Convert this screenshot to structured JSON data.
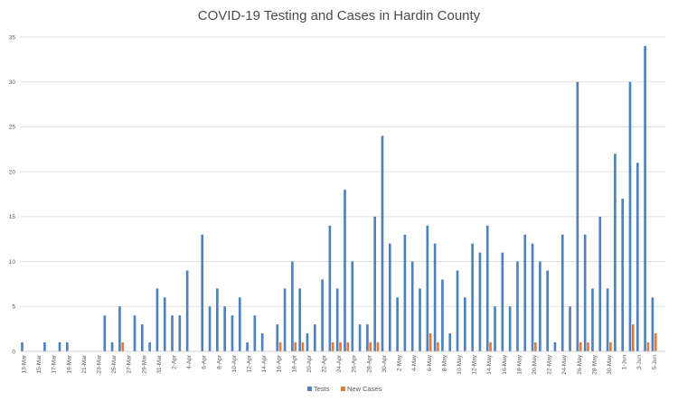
{
  "chart_data": {
    "type": "bar",
    "title": "COVID-19 Testing and Cases in Hardin County",
    "xlabel": "",
    "ylabel": "",
    "ylim": [
      0,
      35
    ],
    "yticks": [
      0,
      5,
      10,
      15,
      20,
      25,
      30,
      35
    ],
    "grid": true,
    "legend_position": "bottom",
    "categories": [
      "13-Mar",
      "14-Mar",
      "15-Mar",
      "16-Mar",
      "17-Mar",
      "18-Mar",
      "19-Mar",
      "20-Mar",
      "21-Mar",
      "22-Mar",
      "23-Mar",
      "24-Mar",
      "25-Mar",
      "26-Mar",
      "27-Mar",
      "28-Mar",
      "29-Mar",
      "30-Mar",
      "31-Mar",
      "1-Apr",
      "2-Apr",
      "3-Apr",
      "4-Apr",
      "5-Apr",
      "6-Apr",
      "7-Apr",
      "8-Apr",
      "9-Apr",
      "10-Apr",
      "11-Apr",
      "12-Apr",
      "13-Apr",
      "14-Apr",
      "15-Apr",
      "16-Apr",
      "17-Apr",
      "18-Apr",
      "19-Apr",
      "20-Apr",
      "21-Apr",
      "22-Apr",
      "23-Apr",
      "24-Apr",
      "25-Apr",
      "26-Apr",
      "27-Apr",
      "28-Apr",
      "29-Apr",
      "30-Apr",
      "1-May",
      "2-May",
      "3-May",
      "4-May",
      "5-May",
      "6-May",
      "7-May",
      "8-May",
      "9-May",
      "10-May",
      "11-May",
      "12-May",
      "13-May",
      "14-May",
      "15-May",
      "16-May",
      "17-May",
      "18-May",
      "19-May",
      "20-May",
      "21-May",
      "22-May",
      "23-May",
      "24-May",
      "25-May",
      "26-May",
      "27-May",
      "28-May",
      "29-May",
      "30-May",
      "31-May",
      "1-Jun",
      "2-Jun",
      "3-Jun",
      "4-Jun",
      "5-Jun",
      "6-Jun"
    ],
    "tick_labels": [
      "13-Mar",
      "15-Mar",
      "17-Mar",
      "19-Mar",
      "21-Mar",
      "23-Mar",
      "25-Mar",
      "27-Mar",
      "29-Mar",
      "31-Mar",
      "2-Apr",
      "4-Apr",
      "6-Apr",
      "8-Apr",
      "10-Apr",
      "12-Apr",
      "14-Apr",
      "16-Apr",
      "18-Apr",
      "20-Apr",
      "22-Apr",
      "24-Apr",
      "26-Apr",
      "28-Apr",
      "30-Apr",
      "2-May",
      "4-May",
      "6-May",
      "8-May",
      "10-May",
      "12-May",
      "14-May",
      "16-May",
      "18-May",
      "20-May",
      "22-May",
      "24-May",
      "26-May",
      "28-May",
      "30-May",
      "1-Jun",
      "3-Jun",
      "5-Jun"
    ],
    "series": [
      {
        "name": "Tests",
        "color": "#4f81bd",
        "values": [
          1,
          0,
          0,
          1,
          0,
          1,
          1,
          0,
          0,
          0,
          0,
          4,
          1,
          5,
          0,
          4,
          3,
          1,
          7,
          6,
          4,
          4,
          9,
          0,
          13,
          5,
          7,
          5,
          4,
          6,
          1,
          4,
          2,
          0,
          3,
          7,
          10,
          7,
          2,
          3,
          8,
          14,
          7,
          18,
          10,
          3,
          3,
          15,
          24,
          12,
          6,
          13,
          10,
          7,
          14,
          12,
          8,
          2,
          9,
          6,
          12,
          11,
          14,
          5,
          11,
          5,
          10,
          13,
          12,
          10,
          9,
          1,
          13,
          5,
          30,
          13,
          7,
          15,
          7,
          22,
          17,
          30,
          21,
          34,
          6,
          0
        ]
      },
      {
        "name": "New Cases",
        "color": "#e07b39",
        "values": [
          0,
          0,
          0,
          0,
          0,
          0,
          0,
          0,
          0,
          0,
          0,
          0,
          0,
          1,
          0,
          0,
          0,
          0,
          0,
          0,
          0,
          0,
          0,
          0,
          0,
          0,
          0,
          0,
          0,
          0,
          0,
          0,
          0,
          0,
          1,
          0,
          1,
          1,
          0,
          0,
          0,
          1,
          1,
          1,
          0,
          0,
          1,
          1,
          0,
          0,
          0,
          0,
          0,
          0,
          2,
          1,
          0,
          0,
          0,
          0,
          0,
          0,
          1,
          0,
          0,
          0,
          0,
          0,
          1,
          0,
          0,
          0,
          0,
          0,
          1,
          1,
          0,
          0,
          1,
          0,
          0,
          3,
          0,
          1,
          2,
          0
        ]
      }
    ]
  }
}
